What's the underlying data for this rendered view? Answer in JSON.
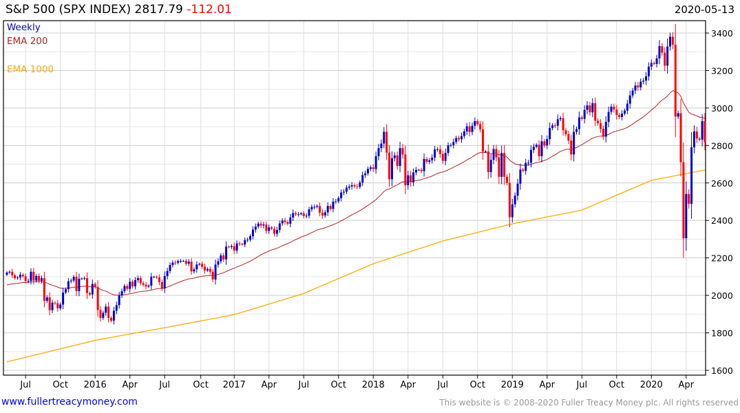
{
  "header": {
    "name": "S&P 500 (SPX INDEX)",
    "last": "2817.79",
    "change": "-112.01",
    "date": "2020-05-13"
  },
  "legend": {
    "period": "Weekly",
    "ema200": "EMA 200",
    "ema1000": "EMA 1000"
  },
  "footer": {
    "site": "www.fullertreacymoney.com",
    "copyright": "This website is © 2008-2020 Fuller Treacy Money plc. All rights reserved"
  },
  "colors": {
    "up": "#0000cc",
    "down": "#ff0000",
    "ema200": "#b22222",
    "ema1000": "#ffaa00",
    "grid": "#dddddd"
  },
  "chart_data": {
    "type": "candlestick",
    "title": "S&P 500 (SPX INDEX) 2817.79 -112.01",
    "x_unit": "week index (first = 2015-05-15)",
    "ylim": [
      1600,
      3400
    ],
    "yticks": [
      1600,
      1800,
      2000,
      2200,
      2400,
      2600,
      2800,
      3000,
      3200,
      3400
    ],
    "xticks": [
      {
        "label": "Jul",
        "week": 7
      },
      {
        "label": "Oct",
        "week": 20
      },
      {
        "label": "2016",
        "week": 33
      },
      {
        "label": "Apr",
        "week": 46
      },
      {
        "label": "Jul",
        "week": 59
      },
      {
        "label": "Oct",
        "week": 72.5
      },
      {
        "label": "2017",
        "week": 85
      },
      {
        "label": "Apr",
        "week": 98
      },
      {
        "label": "Jul",
        "week": 111
      },
      {
        "label": "Oct",
        "week": 124
      },
      {
        "label": "2018",
        "week": 137
      },
      {
        "label": "Apr",
        "week": 150
      },
      {
        "label": "Jul",
        "week": 163
      },
      {
        "label": "Oct",
        "week": 176
      },
      {
        "label": "2019",
        "week": 189
      },
      {
        "label": "Apr",
        "week": 202
      },
      {
        "label": "Jul",
        "week": 215
      },
      {
        "label": "Oct",
        "week": 228
      },
      {
        "label": "2020",
        "week": 241
      },
      {
        "label": "Apr",
        "week": 254
      }
    ],
    "first_open": 2110,
    "weekly_close": [
      2122,
      2126,
      2107,
      2092,
      2095,
      2110,
      2102,
      2077,
      2077,
      2126,
      2079,
      2104,
      2078,
      2092,
      1971,
      1989,
      1921,
      1961,
      1958,
      1931,
      1951,
      2015,
      2033,
      2075,
      2079,
      2099,
      2023,
      2089,
      2090,
      2092,
      2012,
      2005,
      2061,
      2044,
      1922,
      1880,
      1907,
      1940,
      1880,
      1865,
      1918,
      1948,
      2000,
      2022,
      2050,
      2035,
      2073,
      2048,
      2081,
      2092,
      2065,
      2057,
      2047,
      2052,
      2099,
      2099,
      2096,
      2071,
      2037,
      2103,
      2130,
      2162,
      2175,
      2174,
      2183,
      2184,
      2184,
      2169,
      2180,
      2128,
      2139,
      2165,
      2168,
      2153,
      2133,
      2141,
      2126,
      2085,
      2164,
      2182,
      2213,
      2192,
      2260,
      2258,
      2263,
      2239,
      2277,
      2275,
      2271,
      2295,
      2297,
      2316,
      2351,
      2367,
      2383,
      2373,
      2378,
      2344,
      2363,
      2355,
      2329,
      2349,
      2384,
      2399,
      2391,
      2382,
      2416,
      2439,
      2432,
      2433,
      2438,
      2423,
      2425,
      2459,
      2472,
      2472,
      2477,
      2441,
      2426,
      2443,
      2477,
      2461,
      2500,
      2502,
      2519,
      2549,
      2553,
      2575,
      2581,
      2588,
      2582,
      2579,
      2602,
      2642,
      2651,
      2675,
      2683,
      2674,
      2743,
      2786,
      2810,
      2873,
      2762,
      2620,
      2732,
      2747,
      2691,
      2786,
      2752,
      2588,
      2641,
      2604,
      2656,
      2670,
      2670,
      2663,
      2728,
      2713,
      2721,
      2735,
      2779,
      2780,
      2755,
      2718,
      2760,
      2801,
      2802,
      2819,
      2840,
      2833,
      2850,
      2875,
      2902,
      2872,
      2905,
      2930,
      2914,
      2886,
      2767,
      2768,
      2658,
      2723,
      2781,
      2736,
      2633,
      2760,
      2633,
      2600,
      2417,
      2486,
      2532,
      2596,
      2671,
      2665,
      2707,
      2708,
      2776,
      2793,
      2804,
      2743,
      2822,
      2800,
      2834,
      2893,
      2907,
      2905,
      2940,
      2946,
      2881,
      2860,
      2826,
      2752,
      2873,
      2887,
      2950,
      2942,
      2990,
      3014,
      2977,
      3026,
      2932,
      2919,
      2889,
      2847,
      2926,
      2979,
      3007,
      2992,
      2962,
      2952,
      2970,
      2986,
      3023,
      3067,
      3093,
      3120,
      3110,
      3141,
      3146,
      3169,
      3221,
      3240,
      3235,
      3265,
      3330,
      3295,
      3226,
      3328,
      3380,
      3338,
      2954,
      2972,
      2711,
      2305,
      2541,
      2489,
      2790,
      2875,
      2837,
      2831,
      2930,
      2818
    ],
    "ema200_seed": 2052,
    "ema200_period_weeks": 40,
    "ema1000": [
      {
        "week": 0,
        "value": 1645
      },
      {
        "week": 33,
        "value": 1760
      },
      {
        "week": 60,
        "value": 1830
      },
      {
        "week": 85,
        "value": 1897
      },
      {
        "week": 111,
        "value": 2010
      },
      {
        "week": 137,
        "value": 2169
      },
      {
        "week": 163,
        "value": 2290
      },
      {
        "week": 189,
        "value": 2382
      },
      {
        "week": 215,
        "value": 2455
      },
      {
        "week": 241,
        "value": 2614
      },
      {
        "week": 261,
        "value": 2669
      }
    ]
  }
}
